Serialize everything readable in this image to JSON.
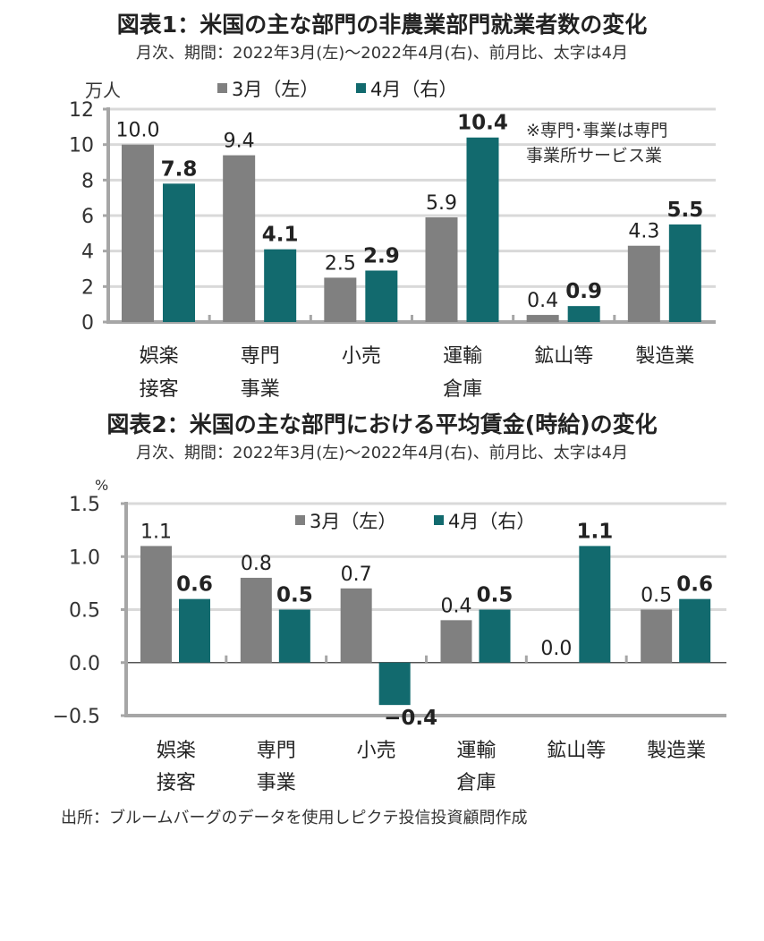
{
  "colors": {
    "march": "#808080",
    "april": "#126a6e",
    "grid": "#d9d9d9",
    "axis": "#a6a6a6"
  },
  "chart_data": [
    {
      "type": "bar",
      "title": "図表1：米国の主な部門の非農業部門就業者数の変化",
      "subtitle": "月次、期間：2022年3月(左)～2022年4月(右)、前月比、太字は4月",
      "ylabel": "万人",
      "ylim": [
        0,
        12
      ],
      "yticks": [
        "0",
        "2",
        "4",
        "6",
        "8",
        "10",
        "12"
      ],
      "ytick_values": [
        0,
        2,
        4,
        6,
        8,
        10,
        12
      ],
      "grid": true,
      "legend_placement": "top",
      "categories": [
        [
          "娯楽",
          "接客"
        ],
        [
          "専門",
          "事業"
        ],
        [
          "小売"
        ],
        [
          "運輸",
          "倉庫"
        ],
        [
          "鉱山等"
        ],
        [
          "製造業"
        ]
      ],
      "series": [
        {
          "name": "3月（左）",
          "values": [
            10.0,
            9.4,
            2.5,
            5.9,
            0.4,
            4.3
          ],
          "labels": [
            "10.0",
            "9.4",
            "2.5",
            "5.9",
            "0.4",
            "4.3"
          ]
        },
        {
          "name": "4月（右）",
          "values": [
            7.8,
            4.1,
            2.9,
            10.4,
            0.9,
            5.5
          ],
          "labels": [
            "7.8",
            "4.1",
            "2.9",
            "10.4",
            "0.9",
            "5.5"
          ]
        }
      ],
      "annotation": [
        "※専門･事業は専門",
        "事業所サービス業"
      ]
    },
    {
      "type": "bar",
      "title": "図表2：米国の主な部門における平均賃金(時給)の変化",
      "subtitle": "月次、期間：2022年3月(左)～2022年4月(右)、前月比、太字は4月",
      "ylabel": "%",
      "ylim": [
        -0.5,
        1.5
      ],
      "yticks": [
        "−0.5",
        "0.0",
        "0.5",
        "1.0",
        "1.5"
      ],
      "ytick_values": [
        -0.5,
        0,
        0.5,
        1.0,
        1.5
      ],
      "grid": true,
      "legend_placement": "top",
      "categories": [
        [
          "娯楽",
          "接客"
        ],
        [
          "専門",
          "事業"
        ],
        [
          "小売"
        ],
        [
          "運輸",
          "倉庫"
        ],
        [
          "鉱山等"
        ],
        [
          "製造業"
        ]
      ],
      "series": [
        {
          "name": "3月（左）",
          "values": [
            1.1,
            0.8,
            0.7,
            0.4,
            0.0,
            0.5
          ],
          "labels": [
            "1.1",
            "0.8",
            "0.7",
            "0.4",
            "0.0",
            "0.5"
          ]
        },
        {
          "name": "4月（右）",
          "values": [
            0.6,
            0.5,
            -0.4,
            0.5,
            1.1,
            0.6
          ],
          "labels": [
            "0.6",
            "0.5",
            "−0.4",
            "0.5",
            "1.1",
            "0.6"
          ]
        }
      ]
    }
  ],
  "source": "出所：ブルームバーグのデータを使用しピクテ投信投資顧問作成"
}
